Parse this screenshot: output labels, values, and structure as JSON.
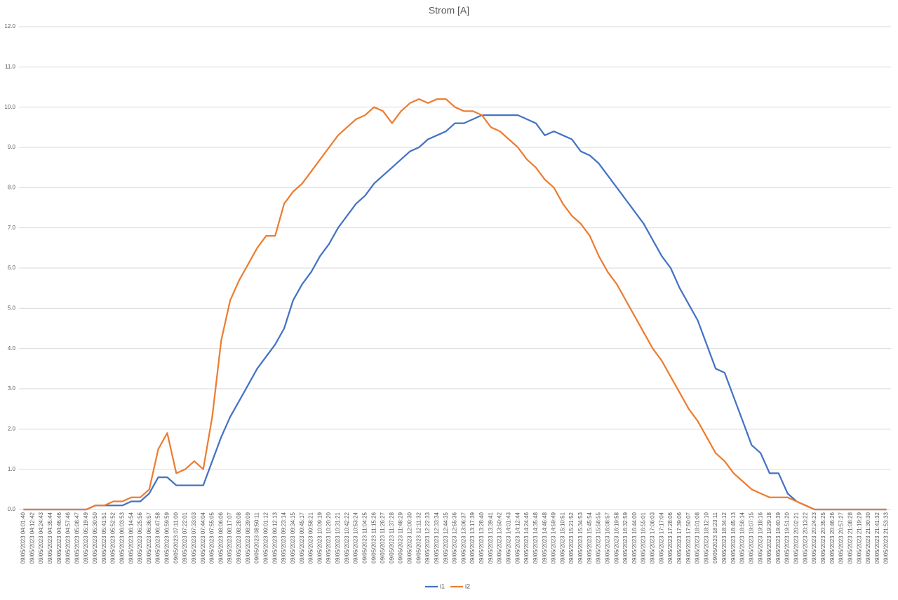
{
  "chart_data": {
    "type": "line",
    "title": "Strom [A]",
    "categories": [
      "09/05/2023 04:01:40",
      "09/05/2023 04:12:42",
      "09/05/2023 04:24:43",
      "09/05/2023 04:35:44",
      "09/05/2023 04:46:46",
      "09/05/2023 04:57:46",
      "09/05/2023 05:08:47",
      "09/05/2023 05:19:49",
      "09/05/2023 05:30:50",
      "09/05/2023 05:41:51",
      "09/05/2023 05:52:52",
      "09/05/2023 06:03:53",
      "09/05/2023 06:14:54",
      "09/05/2023 06:25:56",
      "09/05/2023 06:36:57",
      "09/05/2023 06:47:58",
      "09/05/2023 06:59:59",
      "09/05/2023 07:11:00",
      "09/05/2023 07:22:01",
      "09/05/2023 07:33:03",
      "09/05/2023 07:44:04",
      "09/05/2023 07:55:05",
      "09/05/2023 08:06:06",
      "09/05/2023 08:17:07",
      "09/05/2023 08:28:08",
      "09/05/2023 08:39:09",
      "09/05/2023 08:50:11",
      "09/05/2023 09:01:12",
      "09/05/2023 09:12:13",
      "09/05/2023 09:23:14",
      "09/05/2023 09:34:15",
      "09/05/2023 09:45:17",
      "09/05/2023 09:58:21",
      "09/05/2023 10:09:19",
      "09/05/2023 10:20:20",
      "09/05/2023 10:31:21",
      "09/05/2023 10:42:22",
      "09/05/2023 10:53:24",
      "09/05/2023 11:04:25",
      "09/05/2023 11:15:26",
      "09/05/2023 11:26:27",
      "09/05/2023 11:37:28",
      "09/05/2023 11:48:29",
      "09/05/2023 12:00:30",
      "09/05/2023 12:11:32",
      "09/05/2023 12:22:33",
      "09/05/2023 12:33:34",
      "09/05/2023 12:44:35",
      "09/05/2023 12:55:36",
      "09/05/2023 13:06:37",
      "09/05/2023 13:17:39",
      "09/05/2023 13:28:40",
      "09/05/2023 13:39:41",
      "09/05/2023 13:50:42",
      "09/05/2023 14:01:43",
      "09/05/2023 14:12:44",
      "09/05/2023 14:24:46",
      "09/05/2023 14:35:48",
      "09/05/2023 14:46:48",
      "09/05/2023 14:59:49",
      "09/05/2023 15:10:51",
      "09/05/2023 15:21:52",
      "09/05/2023 15:34:53",
      "09/05/2023 15:45:54",
      "09/05/2023 15:56:55",
      "09/05/2023 16:08:57",
      "09/05/2023 16:19:58",
      "09/05/2023 16:32:59",
      "09/05/2023 16:44:00",
      "09/05/2023 16:55:01",
      "09/05/2023 17:06:03",
      "09/05/2023 17:17:04",
      "09/05/2023 17:28:06",
      "09/05/2023 17:39:06",
      "09/05/2023 17:50:07",
      "09/05/2023 18:01:08",
      "09/05/2023 18:12:10",
      "09/05/2023 18:23:11",
      "09/05/2023 18:34:12",
      "09/05/2023 18:45:13",
      "09/05/2023 18:56:14",
      "09/05/2023 19:07:15",
      "09/05/2023 19:18:16",
      "09/05/2023 19:29:18",
      "09/05/2023 19:40:39",
      "09/05/2023 19:51:20",
      "09/05/2023 20:02:21",
      "09/05/2023 20:13:22",
      "09/05/2023 20:24:23",
      "09/05/2023 20:35:25",
      "09/05/2023 20:46:26",
      "09/05/2023 20:57:27",
      "09/05/2023 21:08:28",
      "09/05/2023 21:19:29",
      "09/05/2023 21:30:30",
      "09/05/2023 21:41:32",
      "09/05/2023 21:53:33"
    ],
    "series": [
      {
        "name": "i1",
        "color": "#4472c4",
        "values": [
          0,
          0,
          0,
          0,
          0,
          0,
          0,
          0,
          0.1,
          0.1,
          0.1,
          0.1,
          0.2,
          0.2,
          0.4,
          0.8,
          0.8,
          0.6,
          0.6,
          0.6,
          0.6,
          1.2,
          1.8,
          2.3,
          2.7,
          3.1,
          3.5,
          3.8,
          4.1,
          4.5,
          5.2,
          5.6,
          5.9,
          6.3,
          6.6,
          7.0,
          7.3,
          7.6,
          7.8,
          8.1,
          8.3,
          8.5,
          8.7,
          8.9,
          9.0,
          9.2,
          9.3,
          9.4,
          9.6,
          9.6,
          9.7,
          9.8,
          9.8,
          9.8,
          9.8,
          9.8,
          9.7,
          9.6,
          9.3,
          9.4,
          9.3,
          9.2,
          8.9,
          8.8,
          8.6,
          8.3,
          8.0,
          7.7,
          7.4,
          7.1,
          6.7,
          6.3,
          6.0,
          5.5,
          5.1,
          4.7,
          4.1,
          3.5,
          3.4,
          2.8,
          2.2,
          1.6,
          1.4,
          0.9,
          0.9,
          0.4,
          0.2,
          0.1,
          0,
          0,
          0,
          0,
          0,
          0,
          0,
          0,
          0
        ]
      },
      {
        "name": "i2",
        "color": "#ed7d31",
        "values": [
          0,
          0,
          0,
          0,
          0,
          0,
          0,
          0,
          0.1,
          0.1,
          0.2,
          0.2,
          0.3,
          0.3,
          0.5,
          1.5,
          1.9,
          0.9,
          1.0,
          1.2,
          1.0,
          2.3,
          4.2,
          5.2,
          5.7,
          6.1,
          6.5,
          6.8,
          6.8,
          7.6,
          7.9,
          8.1,
          8.4,
          8.7,
          9.0,
          9.3,
          9.5,
          9.7,
          9.8,
          10.0,
          9.9,
          9.6,
          9.9,
          10.1,
          10.2,
          10.1,
          10.2,
          10.2,
          10.0,
          9.9,
          9.9,
          9.8,
          9.5,
          9.4,
          9.2,
          9.0,
          8.7,
          8.5,
          8.2,
          8.0,
          7.6,
          7.3,
          7.1,
          6.8,
          6.3,
          5.9,
          5.6,
          5.2,
          4.8,
          4.4,
          4.0,
          3.7,
          3.3,
          2.9,
          2.5,
          2.2,
          1.8,
          1.4,
          1.2,
          0.9,
          0.7,
          0.5,
          0.4,
          0.3,
          0.3,
          0.3,
          0.2,
          0.1,
          0,
          0,
          0,
          0,
          0,
          0,
          0,
          0,
          0
        ]
      }
    ],
    "ylim": [
      0,
      12
    ],
    "yticks": [
      {
        "value": 0,
        "label": "0.0"
      },
      {
        "value": 1,
        "label": "1.0"
      },
      {
        "value": 2,
        "label": "2.0"
      },
      {
        "value": 3,
        "label": "3.0"
      },
      {
        "value": 4,
        "label": "4.0"
      },
      {
        "value": 5,
        "label": "5.0"
      },
      {
        "value": 6,
        "label": "6.0"
      },
      {
        "value": 7,
        "label": "7.0"
      },
      {
        "value": 8,
        "label": "8.0"
      },
      {
        "value": 9,
        "label": "9.0"
      },
      {
        "value": 10,
        "label": "10.0"
      },
      {
        "value": 11,
        "label": "11.0"
      },
      {
        "value": 12,
        "label": "12.0"
      }
    ],
    "grid": true,
    "legend": "bottom"
  }
}
